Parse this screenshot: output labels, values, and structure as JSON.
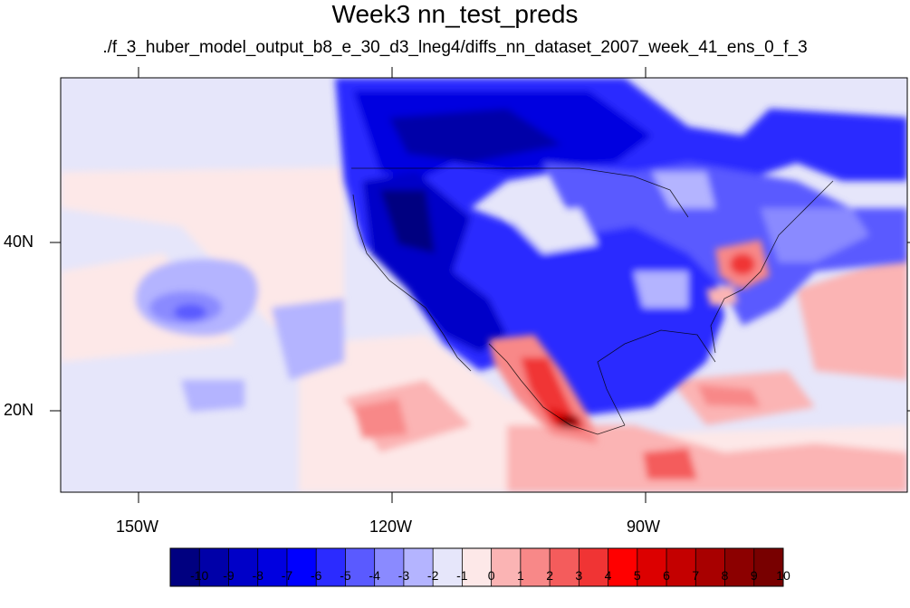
{
  "title": "Week3 nn_test_preds",
  "subtitle": "./f_3_huber_model_output_b8_e_30_d3_lneg4/diffs_nn_dataset_2007_week_41_ens_0_f_3",
  "x_axis": {
    "lon_range": [
      -160,
      -62
    ],
    "ticks": [
      {
        "lon": -150,
        "label": "150W"
      },
      {
        "lon": -120,
        "label": "120W"
      },
      {
        "lon": -90,
        "label": "90W"
      }
    ]
  },
  "y_axis": {
    "lat_range": [
      11,
      60
    ],
    "ticks": [
      {
        "lat": 40,
        "label": "40N"
      },
      {
        "lat": 20,
        "label": "20N"
      }
    ]
  },
  "colorbar": {
    "labels": [
      "-10",
      "-9",
      "-8",
      "-7",
      "-6",
      "-5",
      "-4",
      "-3",
      "-2",
      "-1",
      "0",
      "1",
      "2",
      "3",
      "4",
      "5",
      "6",
      "7",
      "8",
      "9",
      "10"
    ],
    "colors": [
      "#000080",
      "#0000a8",
      "#0000c8",
      "#0000e0",
      "#0000ff",
      "#2b2bff",
      "#5a5aff",
      "#8a8aff",
      "#b4b4ff",
      "#e6e6fa",
      "#fde8e8",
      "#fbb4b4",
      "#f88888",
      "#f45c5c",
      "#f03434",
      "#ff0000",
      "#dc0000",
      "#c40000",
      "#a80000",
      "#8c0000",
      "#780000"
    ]
  }
}
